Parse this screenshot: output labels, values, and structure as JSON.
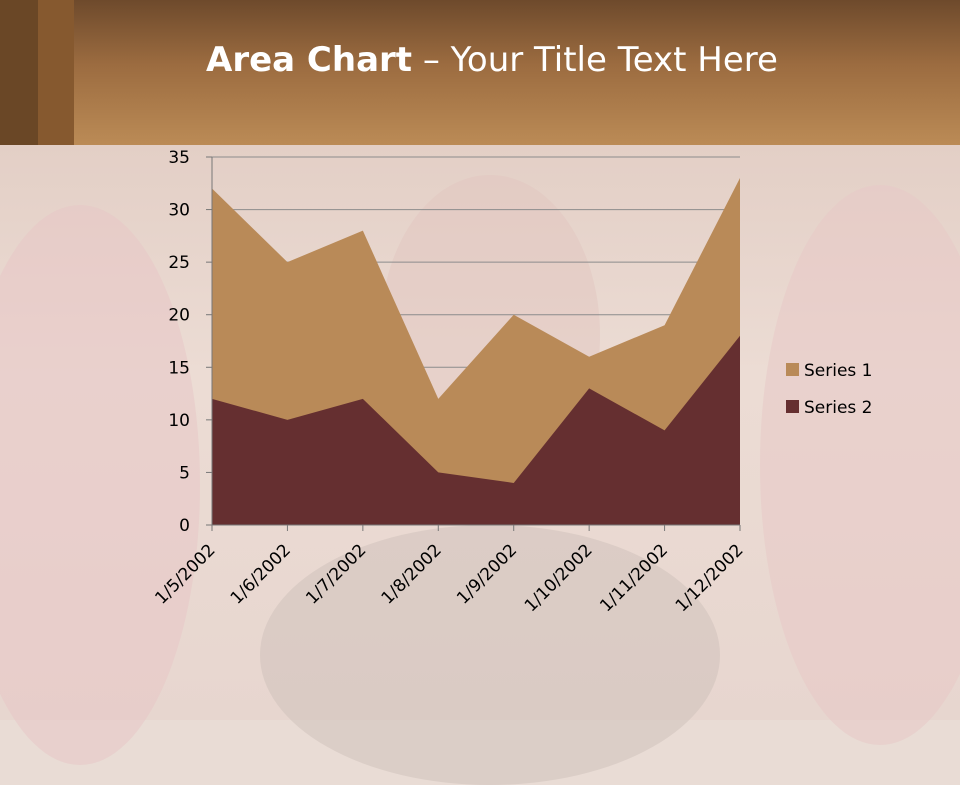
{
  "title": {
    "bold": "Area Chart",
    "rest": " – Your Title Text Here"
  },
  "colors": {
    "series1": "#b98a58",
    "series2": "#652f30",
    "axis": "#777777",
    "grid": "#8c8c8c"
  },
  "chart_data": {
    "type": "area",
    "categories": [
      "1/5/2002",
      "1/6/2002",
      "1/7/2002",
      "1/8/2002",
      "1/9/2002",
      "1/10/2002",
      "1/11/2002",
      "1/12/2002"
    ],
    "series": [
      {
        "name": "Series 1",
        "values": [
          32,
          25,
          28,
          12,
          20,
          16,
          19,
          33
        ]
      },
      {
        "name": "Series 2",
        "values": [
          12,
          10,
          12,
          5,
          4,
          13,
          9,
          18
        ]
      }
    ],
    "ylim": [
      0,
      35
    ],
    "yticks": [
      0,
      5,
      10,
      15,
      20,
      25,
      30,
      35
    ],
    "grid": true,
    "legend": "right"
  }
}
